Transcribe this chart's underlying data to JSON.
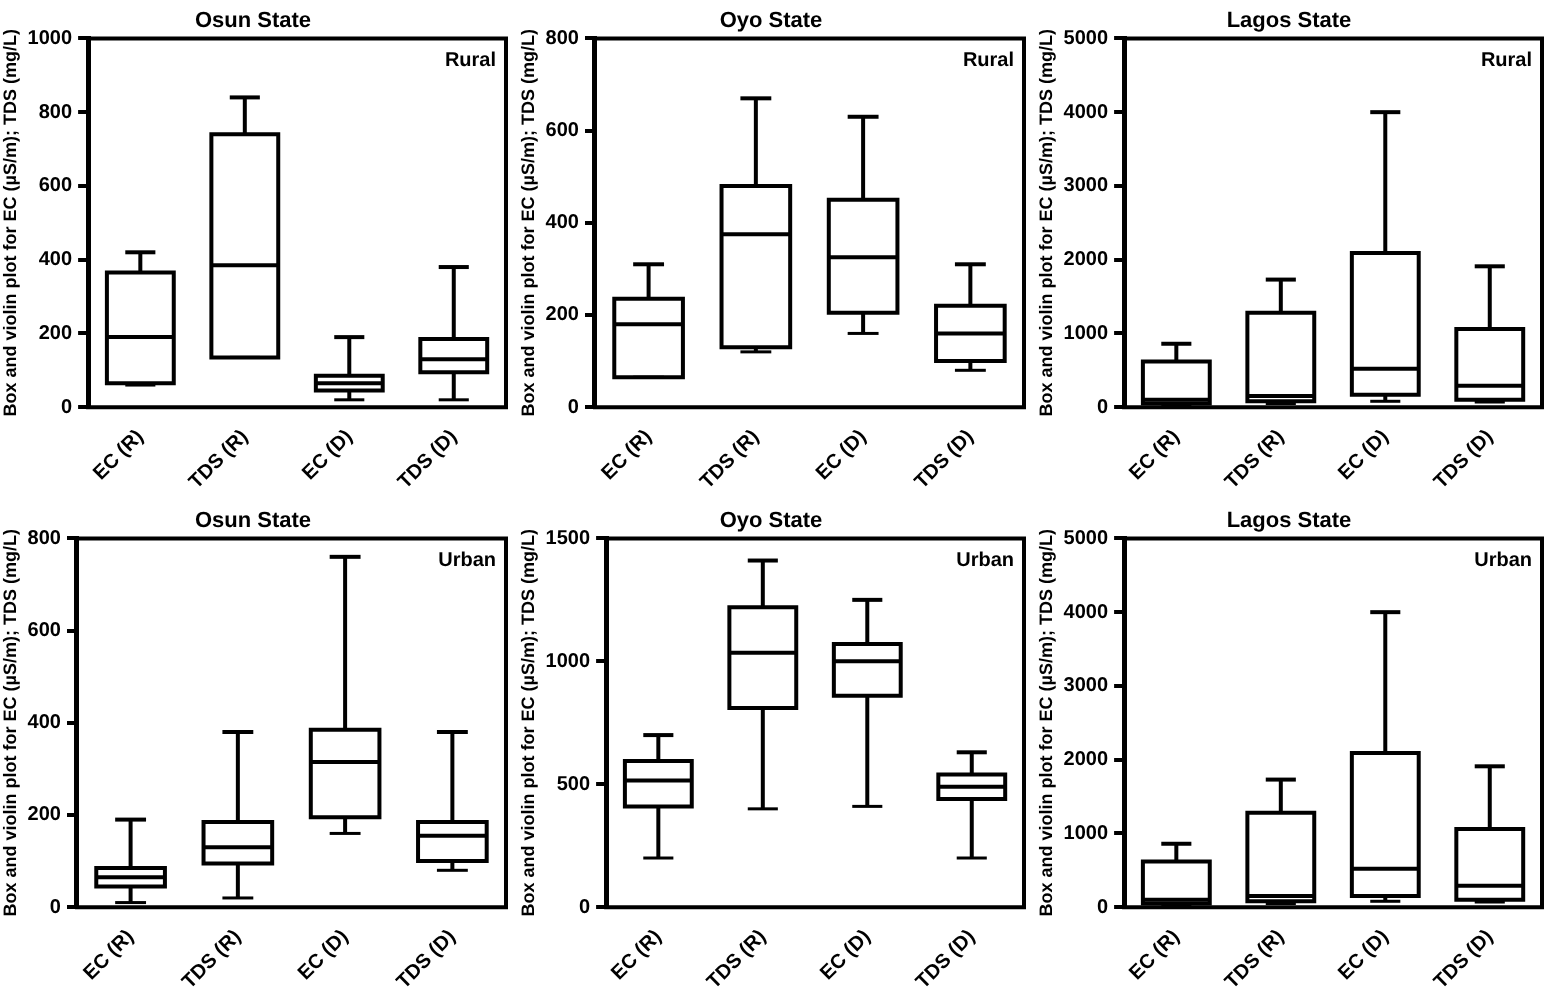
{
  "chart_data": [
    {
      "type": "box",
      "title": "Osun State",
      "annotations": [
        "Rural"
      ],
      "ylabel": "Box and violin plot for EC (µS/m); TDS (mg/L)",
      "categories": [
        "EC (R)",
        "TDS (R)",
        "EC (D)",
        "TDS (D)"
      ],
      "ylim": [
        0,
        1000
      ],
      "yticks": [
        0,
        200,
        400,
        600,
        800,
        1000
      ],
      "grid": false,
      "boxes": [
        {
          "low": 60,
          "q1": 65,
          "median": 190,
          "q3": 365,
          "high": 420
        },
        {
          "low": 135,
          "q1": 135,
          "median": 385,
          "q3": 740,
          "high": 840
        },
        {
          "low": 20,
          "q1": 45,
          "median": 65,
          "q3": 85,
          "high": 190
        },
        {
          "low": 20,
          "q1": 95,
          "median": 130,
          "q3": 185,
          "high": 380
        }
      ]
    },
    {
      "type": "box",
      "title": "Oyo State",
      "annotations": [
        "Rural"
      ],
      "ylabel": "Box and violin plot for EC (µS/m); TDS (mg/L)",
      "categories": [
        "EC (R)",
        "TDS (R)",
        "EC (D)",
        "TDS (D)"
      ],
      "ylim": [
        0,
        800
      ],
      "yticks": [
        0,
        200,
        400,
        600,
        800
      ],
      "grid": false,
      "boxes": [
        {
          "low": 65,
          "q1": 65,
          "median": 180,
          "q3": 235,
          "high": 310
        },
        {
          "low": 120,
          "q1": 130,
          "median": 375,
          "q3": 480,
          "high": 670
        },
        {
          "low": 160,
          "q1": 205,
          "median": 325,
          "q3": 450,
          "high": 630
        },
        {
          "low": 80,
          "q1": 100,
          "median": 160,
          "q3": 220,
          "high": 310
        }
      ]
    },
    {
      "type": "box",
      "title": "Lagos State",
      "annotations": [
        "Rural"
      ],
      "ylabel": "Box and violin plot for EC (µS/m); TDS (mg/L)",
      "categories": [
        "EC (R)",
        "TDS (R)",
        "EC (D)",
        "TDS (D)"
      ],
      "ylim": [
        0,
        5000
      ],
      "yticks": [
        0,
        1000,
        2000,
        3000,
        4000,
        5000
      ],
      "grid": false,
      "boxes": [
        {
          "low": 30,
          "q1": 50,
          "median": 100,
          "q3": 620,
          "high": 860
        },
        {
          "low": 50,
          "q1": 80,
          "median": 150,
          "q3": 1280,
          "high": 1730
        },
        {
          "low": 80,
          "q1": 170,
          "median": 520,
          "q3": 2090,
          "high": 4000
        },
        {
          "low": 70,
          "q1": 100,
          "median": 290,
          "q3": 1060,
          "high": 1910
        }
      ]
    },
    {
      "type": "box",
      "title": "Osun State",
      "annotations": [
        "Urban"
      ],
      "ylabel": "Box and violin plot for EC (µS/m); TDS (mg/L)",
      "categories": [
        "EC (R)",
        "TDS (R)",
        "EC (D)",
        "TDS (D)"
      ],
      "ylim": [
        0,
        800
      ],
      "yticks": [
        0,
        200,
        400,
        600,
        800
      ],
      "grid": false,
      "boxes": [
        {
          "low": 10,
          "q1": 45,
          "median": 65,
          "q3": 85,
          "high": 190
        },
        {
          "low": 20,
          "q1": 95,
          "median": 130,
          "q3": 185,
          "high": 380
        },
        {
          "low": 160,
          "q1": 195,
          "median": 315,
          "q3": 385,
          "high": 760
        },
        {
          "low": 80,
          "q1": 100,
          "median": 155,
          "q3": 185,
          "high": 380
        }
      ]
    },
    {
      "type": "box",
      "title": "Oyo State",
      "annotations": [
        "Urban"
      ],
      "ylabel": "Box and violin plot for EC (µS/m); TDS (mg/L)",
      "categories": [
        "EC (R)",
        "TDS (R)",
        "EC (D)",
        "TDS (D)"
      ],
      "ylim": [
        0,
        1500
      ],
      "yticks": [
        0,
        500,
        1000,
        1500
      ],
      "grid": false,
      "boxes": [
        {
          "low": 200,
          "q1": 410,
          "median": 515,
          "q3": 595,
          "high": 700
        },
        {
          "low": 400,
          "q1": 810,
          "median": 1035,
          "q3": 1220,
          "high": 1410
        },
        {
          "low": 410,
          "q1": 860,
          "median": 1000,
          "q3": 1070,
          "high": 1250
        },
        {
          "low": 200,
          "q1": 440,
          "median": 490,
          "q3": 540,
          "high": 630
        }
      ]
    },
    {
      "type": "box",
      "title": "Lagos State",
      "annotations": [
        "Urban"
      ],
      "ylabel": "Box and violin plot for EC (µS/m); TDS (mg/L)",
      "categories": [
        "EC (R)",
        "TDS (R)",
        "EC (D)",
        "TDS (D)"
      ],
      "ylim": [
        0,
        5000
      ],
      "yticks": [
        0,
        1000,
        2000,
        3000,
        4000,
        5000
      ],
      "grid": false,
      "boxes": [
        {
          "low": 30,
          "q1": 50,
          "median": 100,
          "q3": 620,
          "high": 860
        },
        {
          "low": 50,
          "q1": 80,
          "median": 150,
          "q3": 1280,
          "high": 1730
        },
        {
          "low": 80,
          "q1": 150,
          "median": 520,
          "q3": 2090,
          "high": 4000
        },
        {
          "low": 70,
          "q1": 100,
          "median": 290,
          "q3": 1060,
          "high": 1910
        }
      ]
    }
  ]
}
